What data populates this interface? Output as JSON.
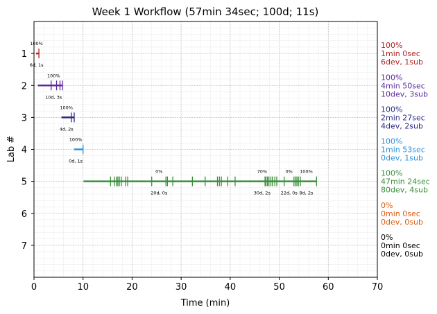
{
  "chart_data": {
    "type": "timeline",
    "title": "Week 1 Workflow (57min 34sec; 100d; 11s)",
    "xlabel": "Time (min)",
    "ylabel": "Lab #",
    "xlim": [
      0,
      70
    ],
    "ylim": [
      8,
      0
    ],
    "x_ticks": [
      0,
      10,
      20,
      30,
      40,
      50,
      60,
      70
    ],
    "y_ticks": [
      1,
      2,
      3,
      4,
      5,
      6,
      7
    ],
    "grid": true,
    "labs": [
      {
        "lab": 1,
        "color": "#b22222",
        "start": 0.4,
        "end": 1.0,
        "ticks": [
          1.0
        ],
        "segments": [
          {
            "label": "100%",
            "detail": "6d, 1s",
            "x": 0.5
          }
        ],
        "summary": [
          "100%",
          "1min 0sec",
          "6dev, 1sub"
        ]
      },
      {
        "lab": 2,
        "color": "#5b2a9a",
        "start": 0.8,
        "end": 5.8,
        "ticks": [
          3.5,
          4.6,
          5.3,
          5.8
        ],
        "segments": [
          {
            "label": "100%",
            "detail": "10d, 3s",
            "x": 4.0
          }
        ],
        "summary": [
          "100%",
          "4min 50sec",
          "10dev, 3sub"
        ]
      },
      {
        "lab": 3,
        "color": "#2a2a80",
        "start": 5.6,
        "end": 8.2,
        "ticks": [
          7.6,
          8.2
        ],
        "segments": [
          {
            "label": "100%",
            "detail": "4d, 2s",
            "x": 6.6
          }
        ],
        "summary": [
          "100%",
          "2min 27sec",
          "4dev, 2sub"
        ]
      },
      {
        "lab": 4,
        "color": "#2a93de",
        "start": 8.2,
        "end": 10.1,
        "ticks": [
          10.0
        ],
        "segments": [
          {
            "label": "100%",
            "detail": "0d, 1s",
            "x": 8.5
          }
        ],
        "summary": [
          "100%",
          "1min 53sec",
          "0dev, 1sub"
        ]
      },
      {
        "lab": 5,
        "color": "#3a8e3a",
        "start": 10.1,
        "end": 57.7,
        "ticks": [
          15.6,
          16.4,
          16.8,
          17.1,
          17.4,
          17.8,
          18.7,
          19.1,
          24.0,
          26.9,
          27.2,
          28.3,
          32.3,
          34.9,
          37.4,
          37.8,
          38.2,
          39.5,
          41.0,
          47.1,
          47.3,
          47.6,
          47.9,
          48.3,
          48.6,
          49.1,
          49.5,
          51.0,
          53.0,
          53.3,
          53.6,
          53.9,
          54.3,
          57.6
        ],
        "segments": [
          {
            "label": "0%",
            "detail": "20d, 0s",
            "x": 25.5
          },
          {
            "label": "70%",
            "detail": "30d, 2s",
            "x": 46.5
          },
          {
            "label": "0%",
            "detail": "22d, 0s",
            "x": 52.0
          },
          {
            "label": "100%",
            "detail": "8d, 2s",
            "x": 55.5
          }
        ],
        "summary": [
          "100%",
          "47min 24sec",
          "80dev, 4sub"
        ]
      },
      {
        "lab": 6,
        "color": "#e05a10",
        "start": null,
        "end": null,
        "ticks": [],
        "segments": [],
        "summary": [
          "0%",
          "0min 0sec",
          "0dev, 0sub"
        ]
      },
      {
        "lab": 7,
        "color": "#000000",
        "start": null,
        "end": null,
        "ticks": [],
        "segments": [],
        "summary": [
          "0%",
          "0min 0sec",
          "0dev, 0sub"
        ]
      }
    ]
  }
}
